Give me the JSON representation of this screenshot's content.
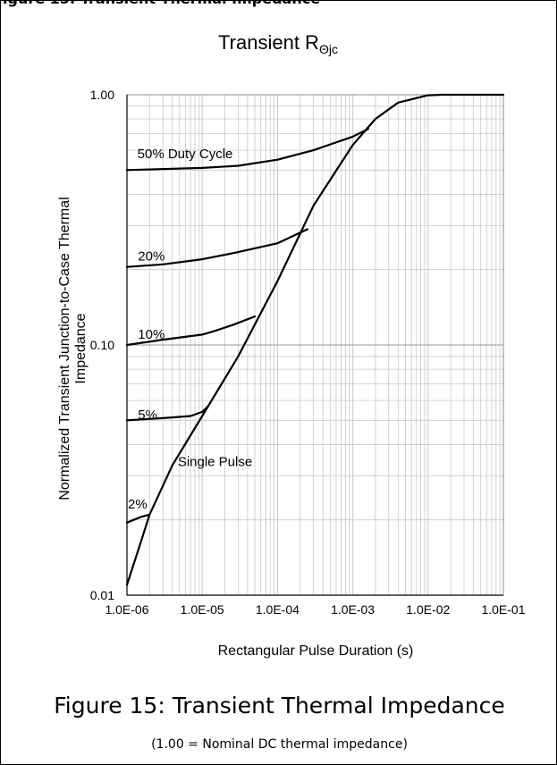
{
  "page": {
    "cut_header": "igure 15: Transient Thermal Impedance",
    "caption": "Figure 15: Transient Thermal Impedance",
    "footnote": "(1.00 = Nominal DC thermal impedance)"
  },
  "colors": {
    "curve": "#000000",
    "grid": "#c8c8c8",
    "axis": "#000000",
    "background": "#ffffff"
  },
  "chart_data": {
    "type": "line",
    "title": "Transient R",
    "title_subscript": "Θjc",
    "xlabel": "Rectangular Pulse Duration (s)",
    "ylabel_lines": [
      "Normalized Transient Junction-to-Case Thermal",
      "Impedance"
    ],
    "x_scale": "log",
    "y_scale": "log",
    "xlim": [
      1e-06,
      0.1
    ],
    "ylim": [
      0.01,
      1.0
    ],
    "grid": true,
    "legend": "none",
    "x_tick_labels": [
      "1.0E-06",
      "1.0E-05",
      "1.0E-04",
      "1.0E-03",
      "1.0E-02",
      "1.0E-01"
    ],
    "y_tick_labels": [
      "0.01",
      "0.10",
      "1.00"
    ],
    "series": [
      {
        "name": "50%  Duty Cycle",
        "x": [
          1e-06,
          1e-05,
          3e-05,
          0.0001,
          0.0003,
          0.001,
          0.0016
        ],
        "y": [
          0.5,
          0.51,
          0.52,
          0.55,
          0.6,
          0.68,
          0.73
        ]
      },
      {
        "name": "20%",
        "x": [
          1e-06,
          3e-06,
          1e-05,
          3e-05,
          0.0001,
          0.00015,
          0.00025
        ],
        "y": [
          0.205,
          0.21,
          0.22,
          0.235,
          0.255,
          0.27,
          0.29
        ]
      },
      {
        "name": "10%",
        "x": [
          1e-06,
          3e-06,
          1e-05,
          1.5e-05,
          2.5e-05,
          5e-05
        ],
        "y": [
          0.1,
          0.105,
          0.11,
          0.114,
          0.12,
          0.13
        ]
      },
      {
        "name": "5%",
        "x": [
          1e-06,
          3e-06,
          7e-06,
          1e-05,
          1.2e-05
        ],
        "y": [
          0.05,
          0.051,
          0.052,
          0.054,
          0.057
        ]
      },
      {
        "name": "2%",
        "x": [
          1e-06,
          1.5e-06,
          2e-06
        ],
        "y": [
          0.0195,
          0.0205,
          0.021
        ]
      },
      {
        "name": "Single Pulse",
        "x": [
          1e-06,
          1.5e-06,
          2e-06,
          4e-06,
          1e-05,
          3e-05,
          0.0001,
          0.0003,
          0.001,
          0.002,
          0.004,
          0.01,
          0.015,
          0.1
        ],
        "y": [
          0.011,
          0.016,
          0.021,
          0.033,
          0.052,
          0.09,
          0.18,
          0.36,
          0.63,
          0.8,
          0.93,
          0.995,
          1.0,
          1.0
        ]
      }
    ]
  }
}
